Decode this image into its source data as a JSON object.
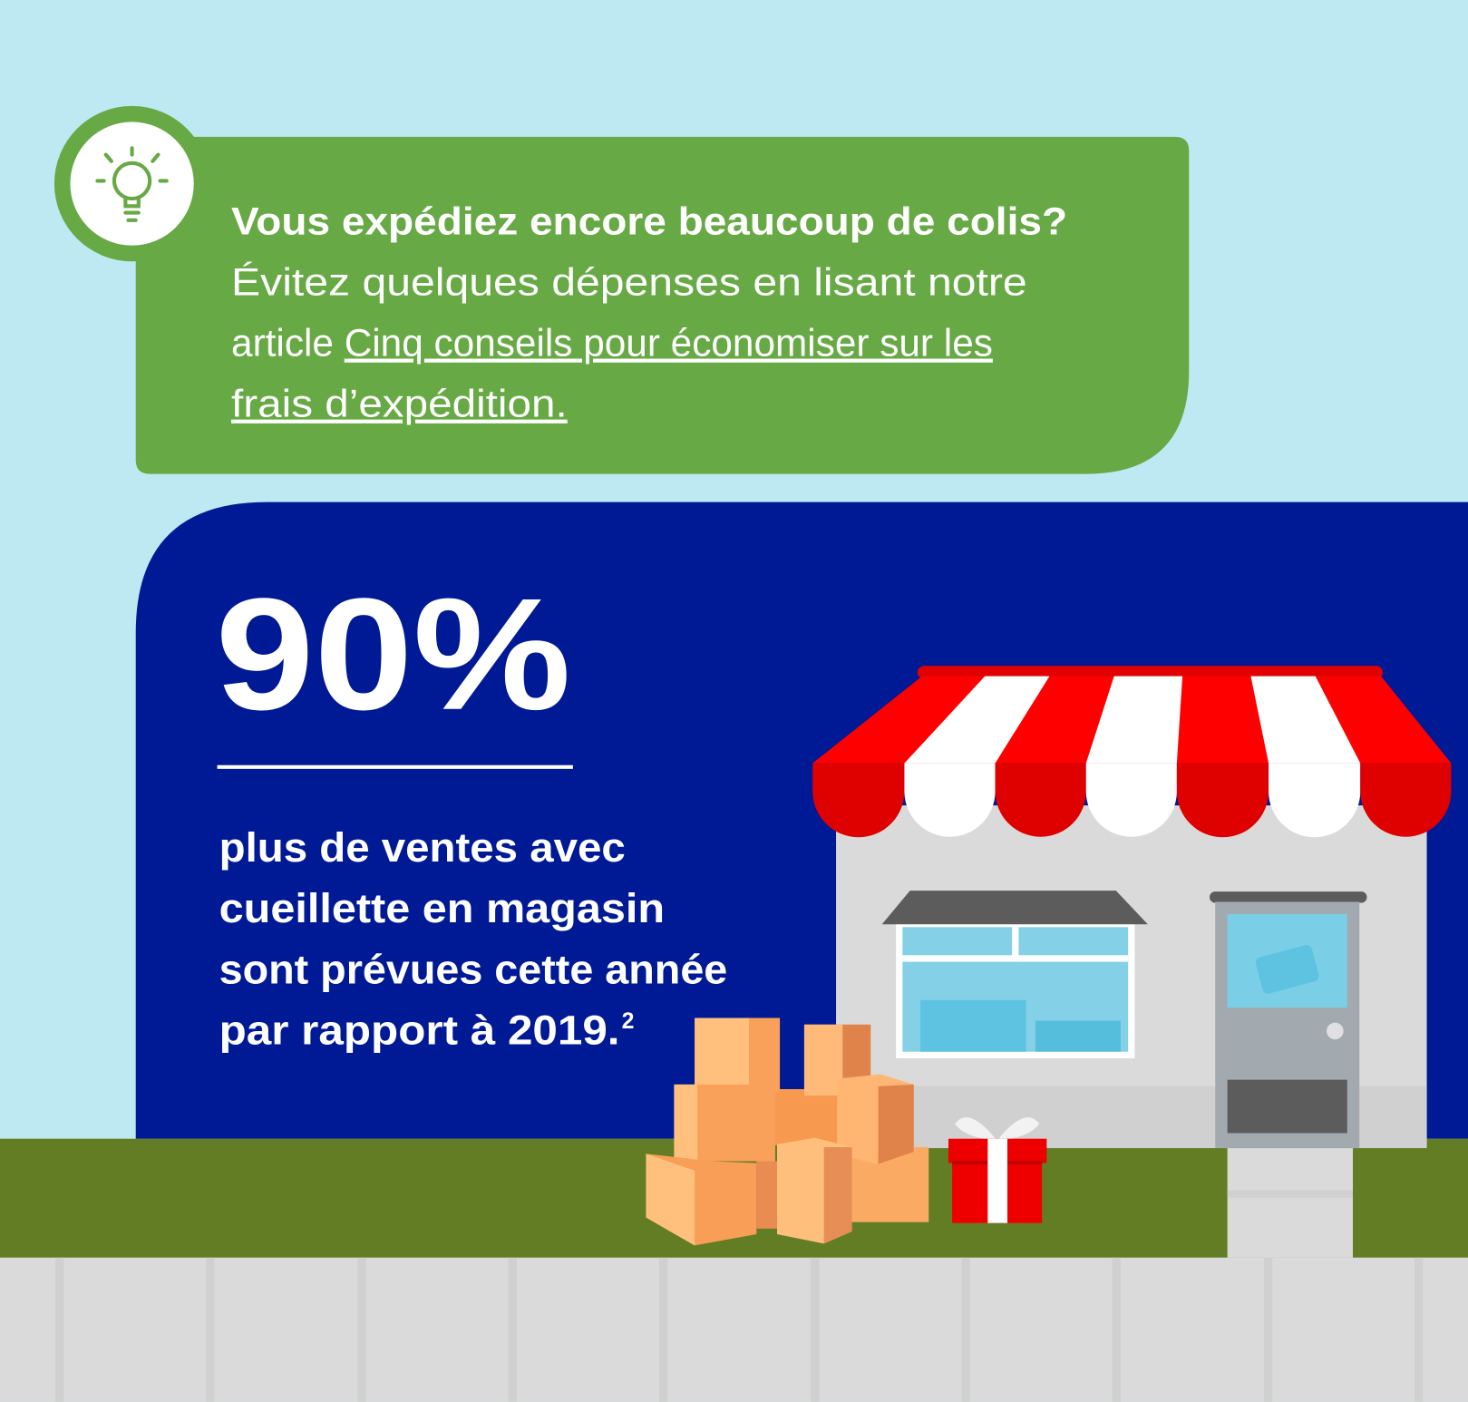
{
  "colors": {
    "sky": "#BFE9F2",
    "tip_green": "#67A944",
    "panel_blue": "#001A96",
    "grass": "#627D24",
    "sidewalk": "#DADADA",
    "awning_red": "#FF0000"
  },
  "tip": {
    "icon": "lightbulb-icon",
    "heading": "Vous expédiez encore beaucoup de colis?",
    "line2": "Évitez quelques dépenses en lisant notre",
    "line3_prefix": "article ",
    "link_part1": "Cinq conseils pour économiser sur les ",
    "link_part2": "frais d’expédition."
  },
  "stat": {
    "value": "90%",
    "lines": [
      "plus de ventes avec",
      "cueillette en magasin",
      "sont prévues cette année",
      "par rapport à 2019."
    ],
    "footnote": "2"
  }
}
